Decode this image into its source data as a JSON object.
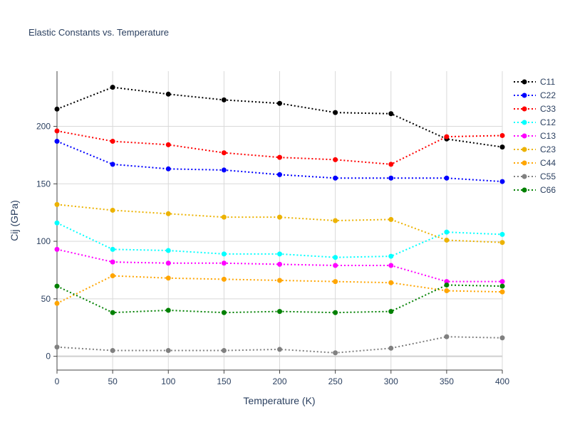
{
  "chart_data": {
    "type": "line",
    "title": "Elastic Constants vs. Temperature",
    "xlabel": "Temperature (K)",
    "ylabel": "Cij (GPa)",
    "x": [
      0,
      50,
      100,
      150,
      200,
      250,
      300,
      350,
      400
    ],
    "xlim": [
      0,
      400
    ],
    "ylim": [
      -12,
      248
    ],
    "xticks": [
      0,
      50,
      100,
      150,
      200,
      250,
      300,
      350,
      400
    ],
    "yticks": [
      0,
      50,
      100,
      150,
      200
    ],
    "grid": true,
    "legend_position": "right",
    "line_style": "dotted",
    "series": [
      {
        "name": "C11",
        "color": "#000000",
        "values": [
          215,
          234,
          228,
          223,
          220,
          212,
          211,
          189,
          182
        ]
      },
      {
        "name": "C22",
        "color": "#0000ff",
        "values": [
          187,
          167,
          163,
          162,
          158,
          155,
          155,
          155,
          152
        ]
      },
      {
        "name": "C33",
        "color": "#ff0000",
        "values": [
          196,
          187,
          184,
          177,
          173,
          171,
          167,
          191,
          192
        ]
      },
      {
        "name": "C12",
        "color": "#00ffff",
        "values": [
          116,
          93,
          92,
          89,
          89,
          86,
          87,
          108,
          106
        ]
      },
      {
        "name": "C13",
        "color": "#ff00ff",
        "values": [
          93,
          82,
          81,
          81,
          80,
          79,
          79,
          65,
          65
        ]
      },
      {
        "name": "C23",
        "color": "#ecb200",
        "values": [
          132,
          127,
          124,
          121,
          121,
          118,
          119,
          101,
          99
        ]
      },
      {
        "name": "C44",
        "color": "#ffa500",
        "values": [
          46,
          70,
          68,
          67,
          66,
          65,
          64,
          57,
          56
        ]
      },
      {
        "name": "C55",
        "color": "#808080",
        "values": [
          8,
          5,
          5,
          5,
          6,
          3,
          7,
          17,
          16
        ]
      },
      {
        "name": "C66",
        "color": "#008000",
        "values": [
          61,
          38,
          40,
          38,
          39,
          38,
          39,
          62,
          61
        ]
      }
    ]
  }
}
